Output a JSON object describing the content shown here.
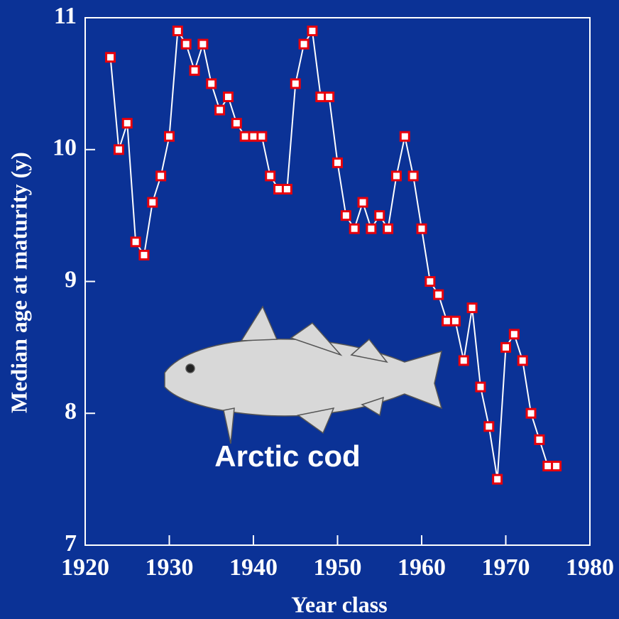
{
  "chart_data": {
    "type": "line",
    "x_label": "Year class",
    "y_label": "Median age at maturity (y)",
    "annotation": "Arctic cod",
    "x": [
      1923,
      1924,
      1925,
      1926,
      1927,
      1928,
      1929,
      1930,
      1931,
      1932,
      1933,
      1934,
      1935,
      1936,
      1937,
      1938,
      1939,
      1940,
      1941,
      1942,
      1943,
      1944,
      1945,
      1946,
      1947,
      1948,
      1949,
      1950,
      1951,
      1952,
      1953,
      1954,
      1955,
      1956,
      1957,
      1958,
      1959,
      1960,
      1961,
      1962,
      1963,
      1964,
      1965,
      1966,
      1967,
      1968,
      1969,
      1970,
      1971,
      1972,
      1973,
      1974,
      1975,
      1976
    ],
    "values": [
      10.7,
      10.0,
      10.2,
      9.3,
      9.2,
      9.6,
      9.8,
      10.1,
      10.9,
      10.8,
      10.6,
      10.8,
      10.5,
      10.3,
      10.4,
      10.2,
      10.1,
      10.1,
      10.1,
      9.8,
      9.7,
      9.7,
      10.5,
      10.8,
      10.9,
      10.4,
      10.4,
      9.9,
      9.5,
      9.4,
      9.6,
      9.4,
      9.5,
      9.4,
      9.8,
      10.1,
      9.8,
      9.4,
      9.0,
      8.9,
      8.7,
      8.7,
      8.4,
      8.8,
      8.2,
      7.9,
      7.5,
      8.5,
      8.6,
      8.4,
      8.0,
      7.8,
      7.6,
      7.6
    ],
    "color": "#ffffff",
    "marker_color": "#e8000b",
    "xlim": [
      1920,
      1980
    ],
    "xticks": [
      1920,
      1930,
      1940,
      1950,
      1960,
      1970,
      1980
    ],
    "ylim": [
      7,
      11
    ],
    "yticks": [
      7,
      8,
      9,
      10,
      11
    ]
  }
}
